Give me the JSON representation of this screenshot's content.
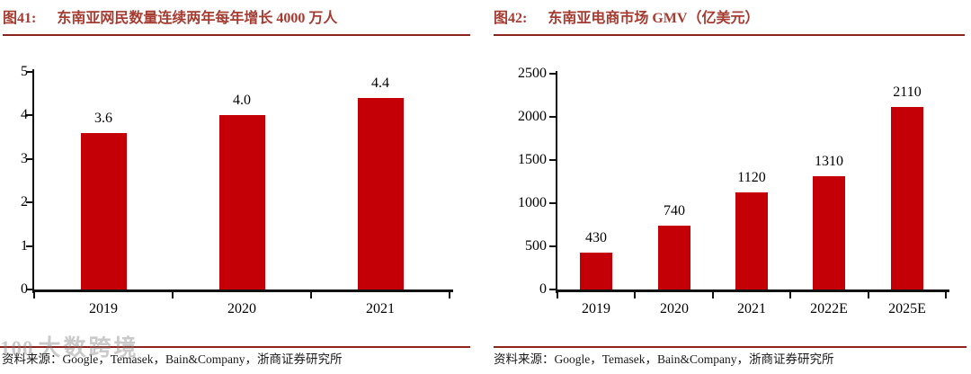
{
  "panels": [
    {
      "fig_label": "图41:",
      "title": "东南亚网民数量连续两年每年增长 4000 万人",
      "source": "资料来源：Google，Temasek，Bain&Company，浙商证券研究所"
    },
    {
      "fig_label": "图42:",
      "title": "东南亚电商市场 GMV（亿美元）",
      "source": "资料来源：Google，Temasek，Bain&Company，浙商证券研究所"
    }
  ],
  "watermark": {
    "logo_text": "100",
    "brand_text": "大数跨境"
  },
  "colors": {
    "bar": "#C40006",
    "title_red": "#A53C32",
    "rule_red": "#8C241E",
    "axis_black": "#111111"
  },
  "chart_data": [
    {
      "type": "bar",
      "title": "东南亚网民数量连续两年每年增长 4000 万人",
      "categories": [
        "2019",
        "2020",
        "2021"
      ],
      "values": [
        3.6,
        4.0,
        4.4
      ],
      "value_labels": [
        "3.6",
        "4.0",
        "4.4"
      ],
      "xlabel": "",
      "ylabel": "",
      "ylim": [
        0,
        5
      ],
      "yticks": [
        0,
        1,
        2,
        3,
        4,
        5
      ],
      "ytick_labels": [
        "0",
        "1",
        "2",
        "3",
        "4",
        "5"
      ],
      "grid": false,
      "legend": null,
      "bar_color": "#C40006"
    },
    {
      "type": "bar",
      "title": "东南亚电商市场 GMV（亿美元）",
      "categories": [
        "2019",
        "2020",
        "2021",
        "2022E",
        "2025E"
      ],
      "values": [
        430,
        740,
        1120,
        1310,
        2110
      ],
      "value_labels": [
        "430",
        "740",
        "1120",
        "1310",
        "2110"
      ],
      "xlabel": "",
      "ylabel": "",
      "ylim": [
        0,
        2500
      ],
      "yticks": [
        0,
        500,
        1000,
        1500,
        2000,
        2500
      ],
      "ytick_labels": [
        "0",
        "500",
        "1000",
        "1500",
        "2000",
        "2500"
      ],
      "grid": false,
      "legend": null,
      "bar_color": "#C40006"
    }
  ]
}
